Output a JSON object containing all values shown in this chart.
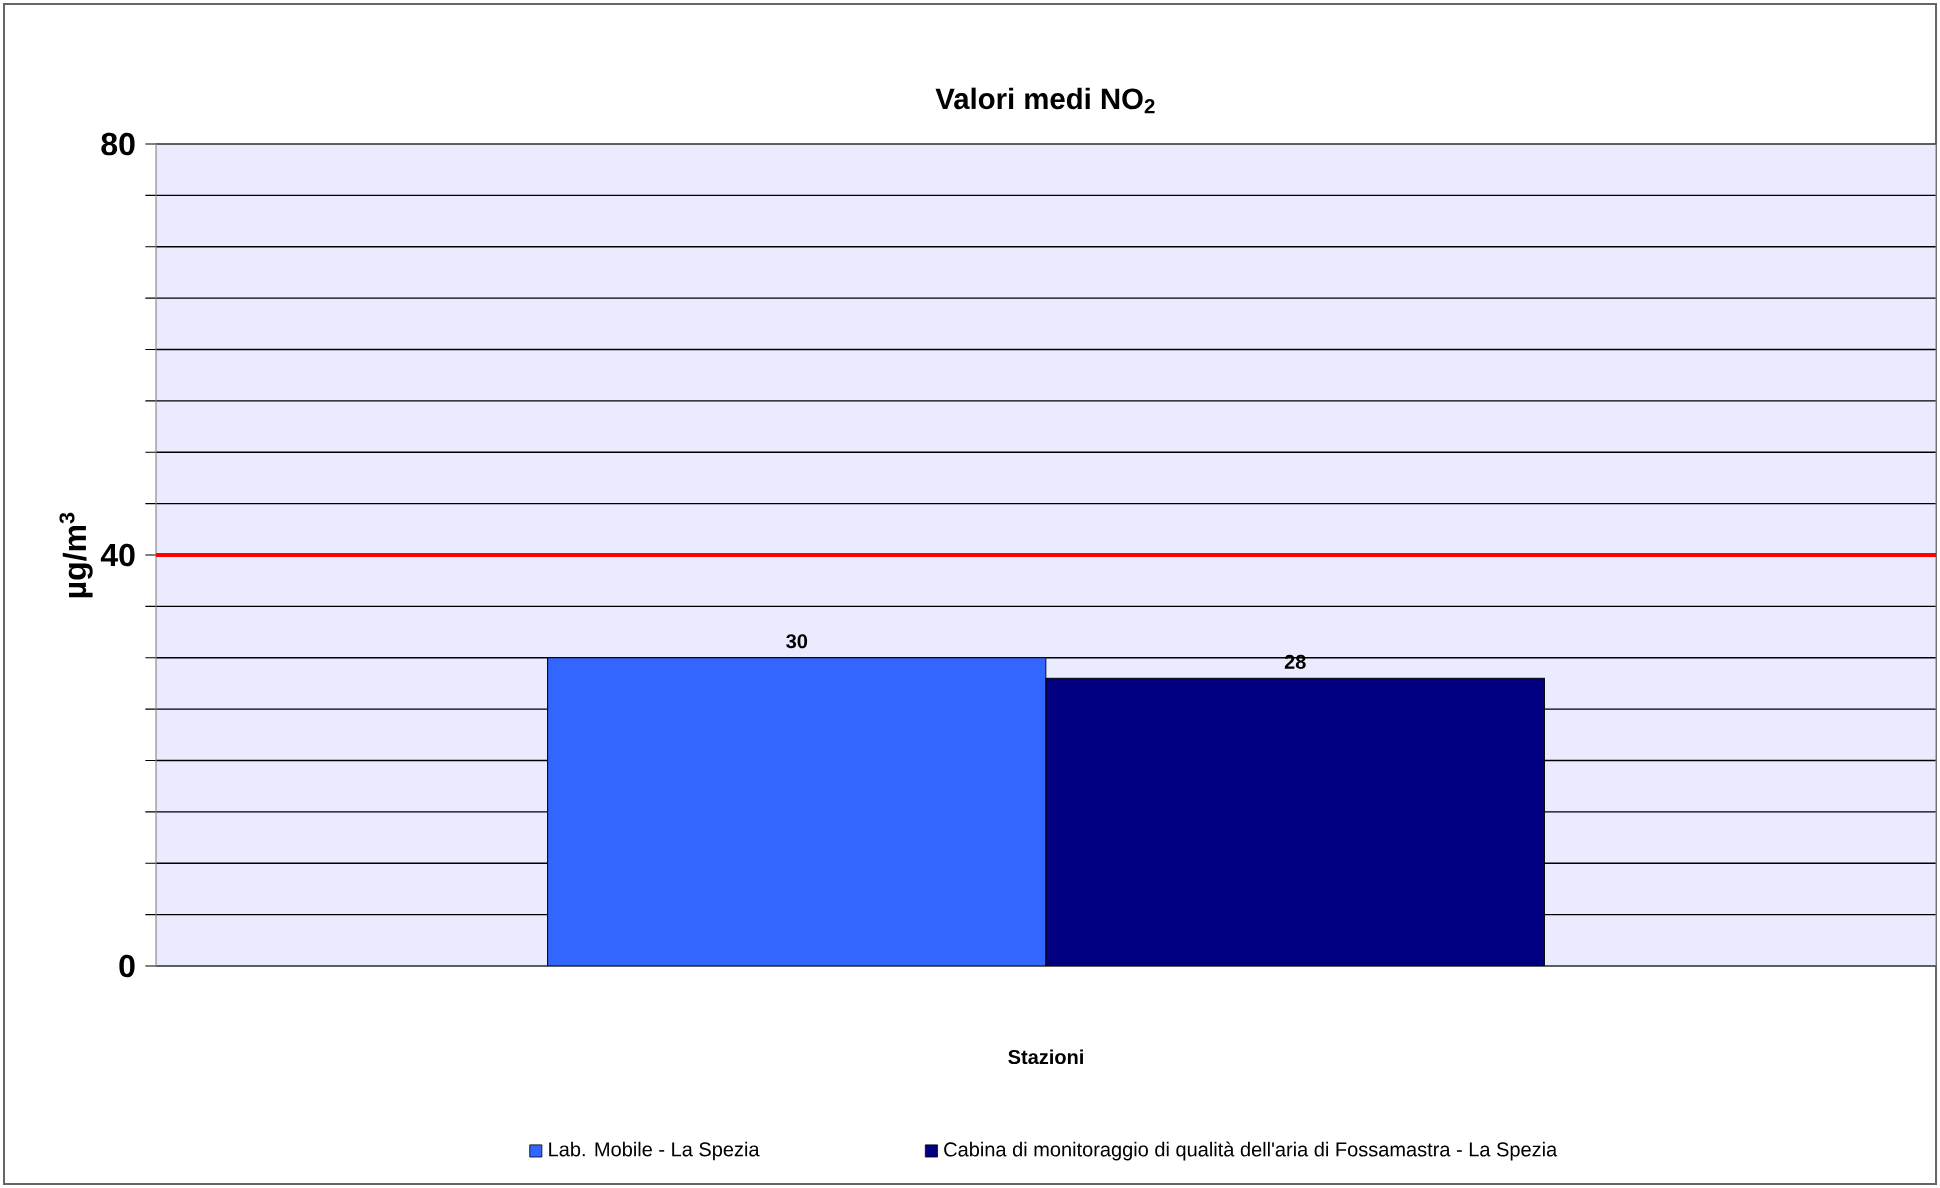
{
  "chart_data": {
    "type": "bar",
    "title": "Valori medi NO$_{2}$",
    "xlabel": "Stazioni",
    "ylabel": "µg/m$^{3}$",
    "categories": [
      null
    ],
    "series": [
      {
        "name": "Lab. Mobile - La Spezia",
        "color": "#3366ff",
        "values": [
          30
        ]
      },
      {
        "name": "Cabina di monitoraggio di qualità dell'aria di Fossamastra - La Spezia",
        "color": "#000080",
        "values": [
          28
        ]
      }
    ],
    "ylim": [
      0,
      80
    ],
    "yticks": [
      0,
      {
        "value": 5,
        "label": null
      },
      {
        "value": 10,
        "label": null
      },
      {
        "value": 15,
        "label": null
      },
      {
        "value": 20,
        "label": null
      },
      {
        "value": 25,
        "label": null
      },
      {
        "value": 30,
        "label": null
      },
      {
        "value": 35,
        "label": null
      },
      40,
      {
        "value": 45,
        "label": null
      },
      {
        "value": 50,
        "label": null
      },
      {
        "value": 55,
        "label": null
      },
      {
        "value": 60,
        "label": null
      },
      {
        "value": 65,
        "label": null
      },
      {
        "value": 70,
        "label": null
      },
      {
        "value": 75,
        "label": null
      },
      80
    ],
    "ref_lines": [
      {
        "axis": "y",
        "value": 40,
        "color": "#ff0000"
      }
    ],
    "data_labels": true,
    "grid": "y",
    "legend": "bottom"
  }
}
